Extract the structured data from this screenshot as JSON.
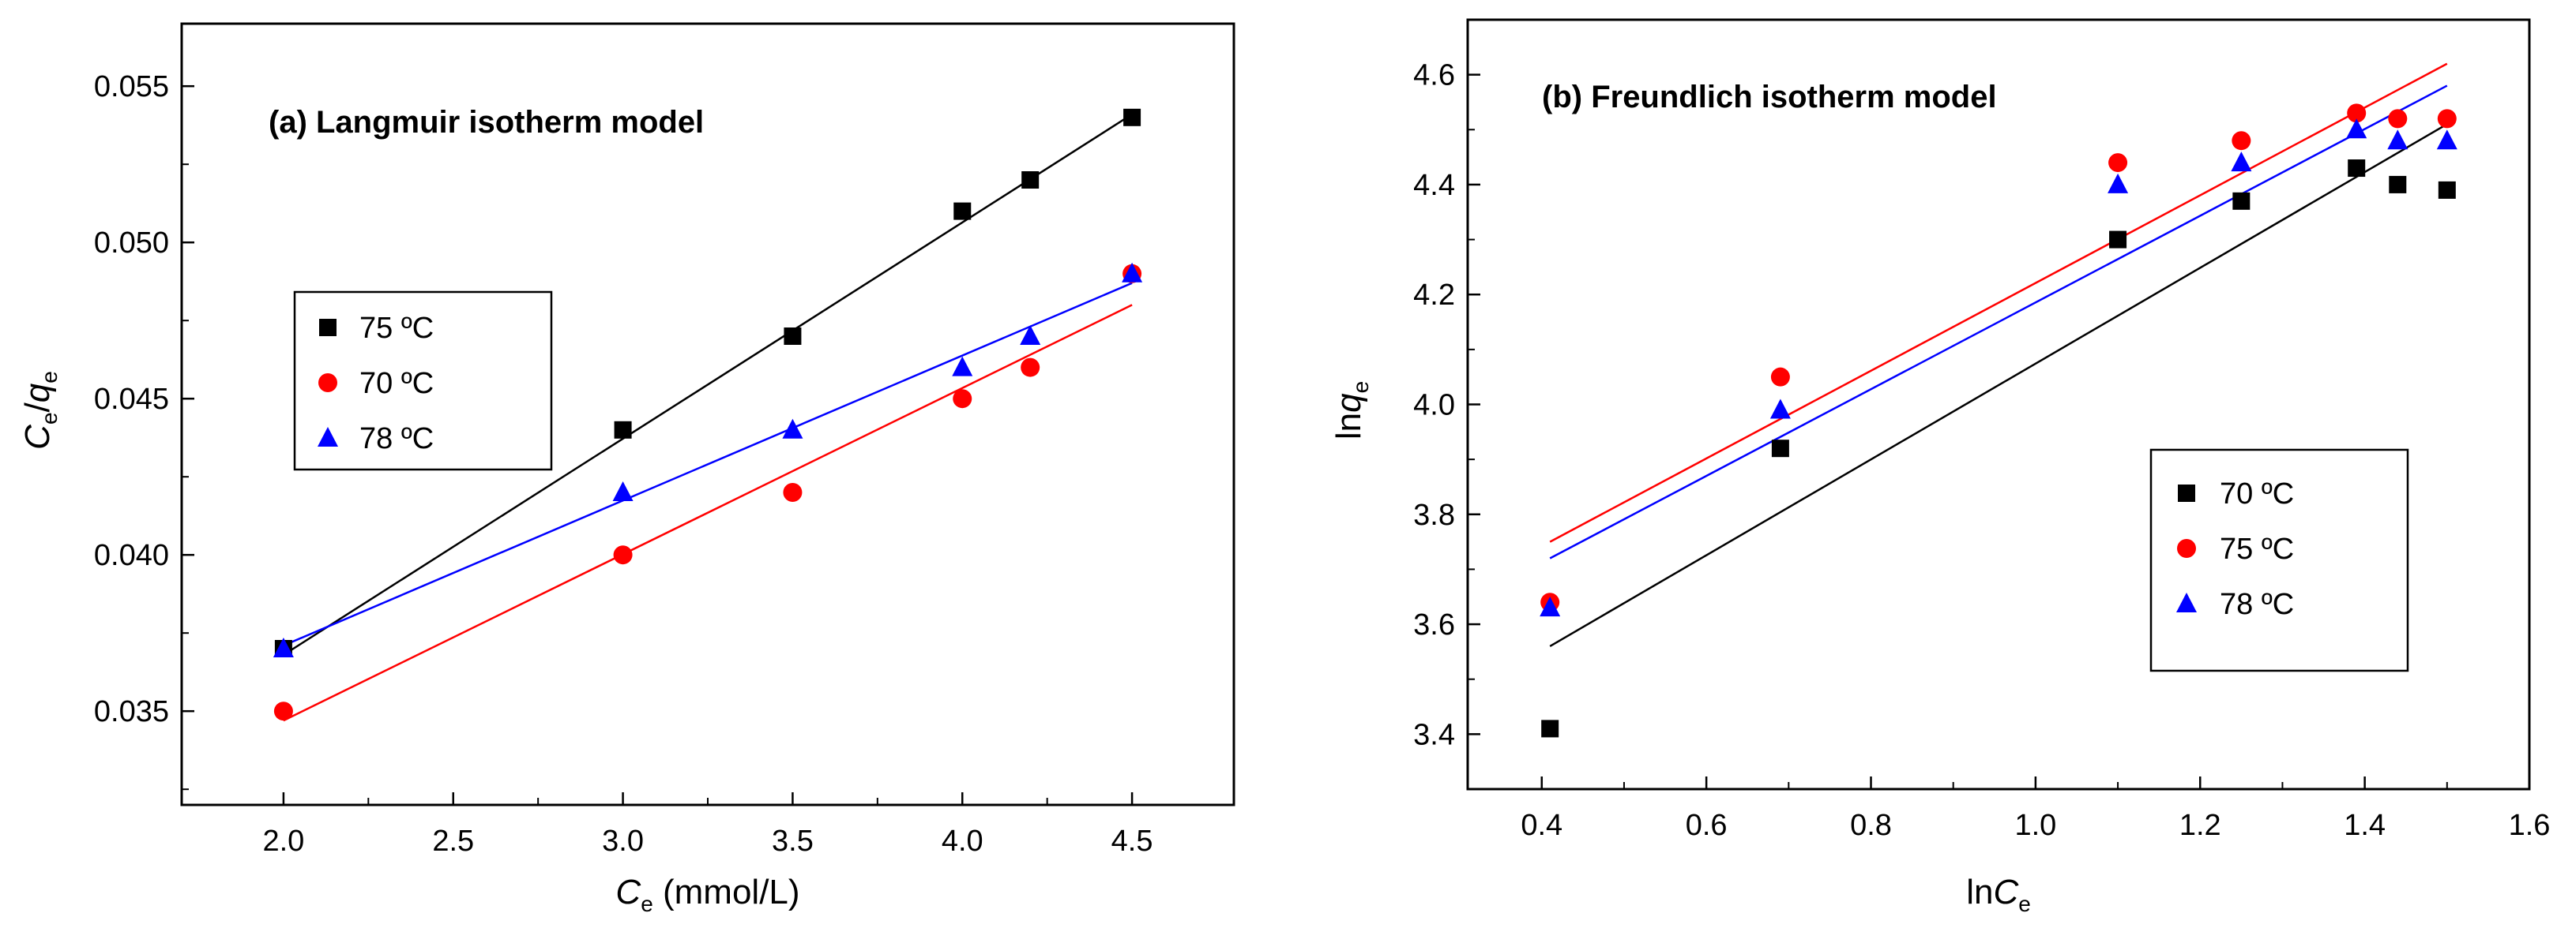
{
  "chart_data": [
    {
      "type": "scatter",
      "title": "(a) Langmuir isotherm model",
      "xlabel": {
        "main": "C",
        "sub": "e",
        "suffix": " (mmol/L)"
      },
      "ylabel": {
        "main": "C",
        "sub": "e",
        "slash": "/",
        "main2": "q",
        "sub2": "e"
      },
      "xlim": [
        1.7,
        4.8
      ],
      "ylim": [
        0.032,
        0.057
      ],
      "xticks": [
        2.0,
        2.5,
        3.0,
        3.5,
        4.0,
        4.5
      ],
      "xtick_labels": [
        "2.0",
        "2.5",
        "3.0",
        "3.5",
        "4.0",
        "4.5"
      ],
      "yticks": [
        0.035,
        0.04,
        0.045,
        0.05,
        0.055
      ],
      "ytick_labels": [
        "0.035",
        "0.040",
        "0.045",
        "0.050",
        "0.055"
      ],
      "legend_position": "left-middle",
      "series": [
        {
          "name": "75 ºC",
          "marker": "square",
          "color": "#000000",
          "x": [
            2.0,
            3.0,
            3.5,
            4.0,
            4.2,
            4.5
          ],
          "y": [
            0.037,
            0.044,
            0.047,
            0.051,
            0.052,
            0.054
          ],
          "fit": {
            "x": [
              2.0,
              4.5
            ],
            "y": [
              0.0368,
              0.0541
            ]
          }
        },
        {
          "name": "70 ºC",
          "marker": "circle",
          "color": "#ff0000",
          "x": [
            2.0,
            3.0,
            3.5,
            4.0,
            4.2,
            4.5
          ],
          "y": [
            0.035,
            0.04,
            0.042,
            0.045,
            0.046,
            0.049
          ],
          "fit": {
            "x": [
              2.0,
              4.5
            ],
            "y": [
              0.0347,
              0.048
            ]
          }
        },
        {
          "name": "78 ºC",
          "marker": "triangle",
          "color": "#0000ff",
          "x": [
            2.0,
            3.0,
            3.5,
            4.0,
            4.2,
            4.5
          ],
          "y": [
            0.037,
            0.042,
            0.044,
            0.046,
            0.047,
            0.049
          ],
          "fit": {
            "x": [
              2.0,
              4.5
            ],
            "y": [
              0.0371,
              0.0487
            ]
          }
        }
      ]
    },
    {
      "type": "scatter",
      "title": "(b) Freundlich isotherm model",
      "xlabel": {
        "main": "ln",
        "italic": "C",
        "sub": "e"
      },
      "ylabel": {
        "main": "ln",
        "italic": "q",
        "sub": "e"
      },
      "xlim": [
        0.31,
        1.6
      ],
      "ylim": [
        3.3,
        4.7
      ],
      "xticks": [
        0.4,
        0.6,
        0.8,
        1.0,
        1.2,
        1.4,
        1.6
      ],
      "xtick_labels": [
        "0.4",
        "0.6",
        "0.8",
        "1.0",
        "1.2",
        "1.4",
        "1.6"
      ],
      "yticks": [
        3.4,
        3.6,
        3.8,
        4.0,
        4.2,
        4.4,
        4.6
      ],
      "ytick_labels": [
        "3.4",
        "3.6",
        "3.8",
        "4.0",
        "4.2",
        "4.4",
        "4.6"
      ],
      "legend_position": "bottom-right",
      "series": [
        {
          "name": "70 ºC",
          "marker": "square",
          "color": "#000000",
          "x": [
            0.41,
            0.69,
            1.1,
            1.25,
            1.39,
            1.44,
            1.5
          ],
          "y": [
            3.41,
            3.92,
            4.3,
            4.37,
            4.43,
            4.4,
            4.39
          ],
          "fit": {
            "x": [
              0.41,
              1.5
            ],
            "y": [
              3.56,
              4.51
            ]
          }
        },
        {
          "name": "75 ºC",
          "marker": "circle",
          "color": "#ff0000",
          "x": [
            0.41,
            0.69,
            1.1,
            1.25,
            1.39,
            1.44,
            1.5
          ],
          "y": [
            3.64,
            4.05,
            4.44,
            4.48,
            4.53,
            4.52,
            4.52
          ],
          "fit": {
            "x": [
              0.41,
              1.5
            ],
            "y": [
              3.75,
              4.62
            ]
          }
        },
        {
          "name": "78 ºC",
          "marker": "triangle",
          "color": "#0000ff",
          "x": [
            0.41,
            0.69,
            1.1,
            1.25,
            1.39,
            1.44,
            1.5
          ],
          "y": [
            3.63,
            3.99,
            4.4,
            4.44,
            4.5,
            4.48,
            4.48
          ],
          "fit": {
            "x": [
              0.41,
              1.5
            ],
            "y": [
              3.72,
              4.58
            ]
          }
        }
      ]
    }
  ]
}
